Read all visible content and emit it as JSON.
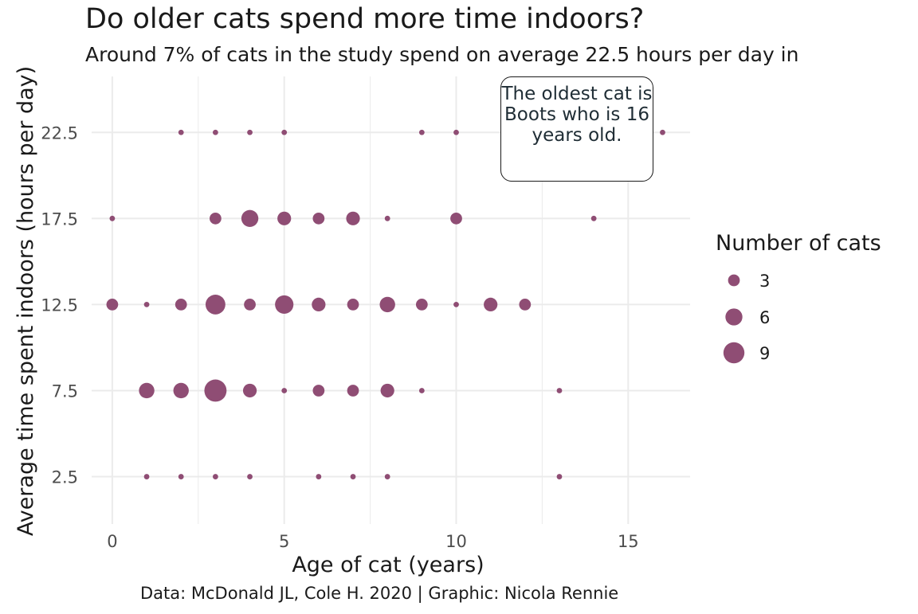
{
  "title": "Do older cats spend more time indoors?",
  "subtitle": "Around 7% of cats in the study spend on average 22.5 hours per day in",
  "caption": "Data: McDonald JL, Cole H. 2020 | Graphic: Nicola Rennie",
  "annotation": "The oldest cat is Boots who is 16 years old.",
  "colors": {
    "point": "#8f4d74",
    "grid": "#ebebeb",
    "text": "#1a1a1a"
  },
  "chart_data": {
    "type": "scatter",
    "title": "Do older cats spend more time indoors?",
    "xlabel": "Age of cat (years)",
    "ylabel": "Average time spent indoors (hours per day)",
    "xlim": [
      -0.6,
      16.8
    ],
    "ylim": [
      -0.25,
      25.75
    ],
    "xticks": [
      0,
      5,
      10,
      15
    ],
    "xtick_labels": [
      "0",
      "5",
      "10",
      "15"
    ],
    "yticks": [
      2.5,
      7.5,
      12.5,
      17.5,
      22.5
    ],
    "ytick_labels": [
      "2.5",
      "7.5",
      "12.5",
      "17.5",
      "22.5"
    ],
    "size_legend": {
      "title": "Number of cats",
      "values": [
        3,
        6,
        9
      ],
      "labels": [
        "3",
        "6",
        "9"
      ]
    },
    "points": [
      {
        "x": 2,
        "y": 22.5,
        "n": 1
      },
      {
        "x": 3,
        "y": 22.5,
        "n": 1
      },
      {
        "x": 4,
        "y": 22.5,
        "n": 1
      },
      {
        "x": 5,
        "y": 22.5,
        "n": 1
      },
      {
        "x": 9,
        "y": 22.5,
        "n": 1
      },
      {
        "x": 10,
        "y": 22.5,
        "n": 1
      },
      {
        "x": 16,
        "y": 22.5,
        "n": 1
      },
      {
        "x": 0,
        "y": 17.5,
        "n": 1
      },
      {
        "x": 3,
        "y": 17.5,
        "n": 3
      },
      {
        "x": 4,
        "y": 17.5,
        "n": 6
      },
      {
        "x": 5,
        "y": 17.5,
        "n": 4
      },
      {
        "x": 6,
        "y": 17.5,
        "n": 3
      },
      {
        "x": 7,
        "y": 17.5,
        "n": 4
      },
      {
        "x": 8,
        "y": 17.5,
        "n": 1
      },
      {
        "x": 10,
        "y": 17.5,
        "n": 3
      },
      {
        "x": 14,
        "y": 17.5,
        "n": 1
      },
      {
        "x": 0,
        "y": 12.5,
        "n": 3
      },
      {
        "x": 1,
        "y": 12.5,
        "n": 1
      },
      {
        "x": 2,
        "y": 12.5,
        "n": 3
      },
      {
        "x": 3,
        "y": 12.5,
        "n": 8
      },
      {
        "x": 4,
        "y": 12.5,
        "n": 3
      },
      {
        "x": 5,
        "y": 12.5,
        "n": 7
      },
      {
        "x": 6,
        "y": 12.5,
        "n": 4
      },
      {
        "x": 7,
        "y": 12.5,
        "n": 3
      },
      {
        "x": 8,
        "y": 12.5,
        "n": 5
      },
      {
        "x": 9,
        "y": 12.5,
        "n": 3
      },
      {
        "x": 10,
        "y": 12.5,
        "n": 1
      },
      {
        "x": 11,
        "y": 12.5,
        "n": 4
      },
      {
        "x": 12,
        "y": 12.5,
        "n": 3
      },
      {
        "x": 1,
        "y": 7.5,
        "n": 5
      },
      {
        "x": 2,
        "y": 7.5,
        "n": 5
      },
      {
        "x": 3,
        "y": 7.5,
        "n": 10
      },
      {
        "x": 4,
        "y": 7.5,
        "n": 4
      },
      {
        "x": 5,
        "y": 7.5,
        "n": 1
      },
      {
        "x": 6,
        "y": 7.5,
        "n": 3
      },
      {
        "x": 7,
        "y": 7.5,
        "n": 3
      },
      {
        "x": 8,
        "y": 7.5,
        "n": 4
      },
      {
        "x": 9,
        "y": 7.5,
        "n": 1
      },
      {
        "x": 13,
        "y": 7.5,
        "n": 1
      },
      {
        "x": 1,
        "y": 2.5,
        "n": 1
      },
      {
        "x": 2,
        "y": 2.5,
        "n": 1
      },
      {
        "x": 3,
        "y": 2.5,
        "n": 1
      },
      {
        "x": 4,
        "y": 2.5,
        "n": 1
      },
      {
        "x": 6,
        "y": 2.5,
        "n": 1
      },
      {
        "x": 7,
        "y": 2.5,
        "n": 1
      },
      {
        "x": 8,
        "y": 2.5,
        "n": 1
      },
      {
        "x": 13,
        "y": 2.5,
        "n": 1
      }
    ]
  }
}
